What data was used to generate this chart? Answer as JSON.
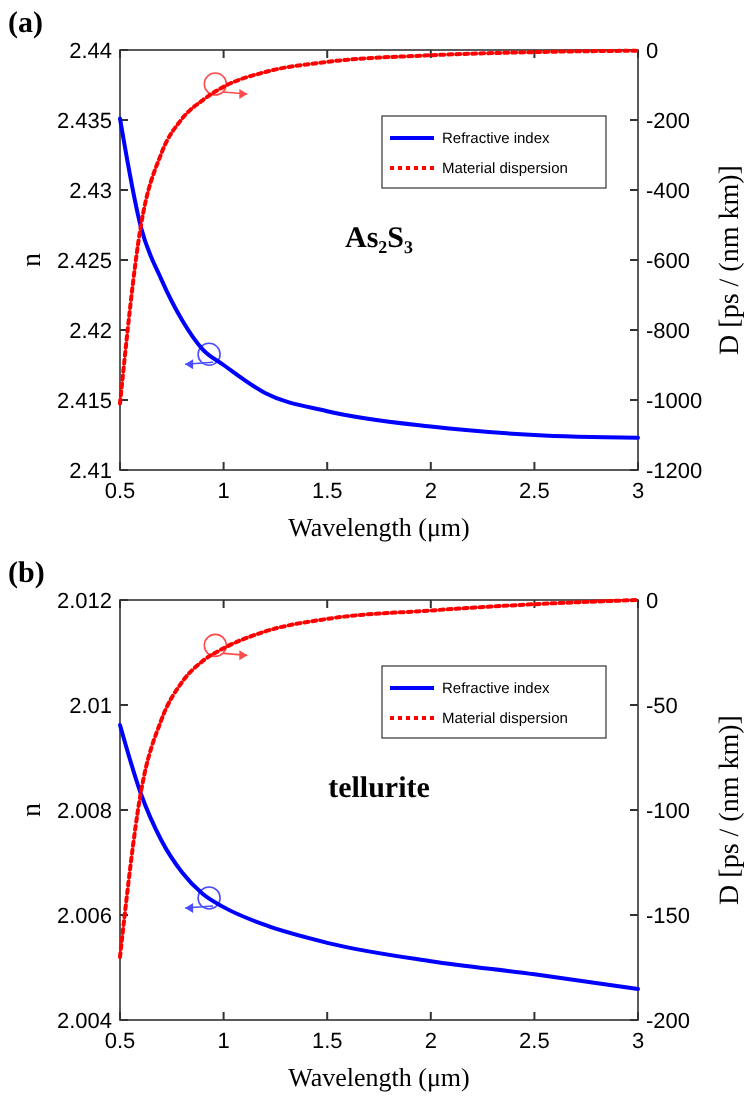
{
  "chart_data": [
    {
      "type": "line",
      "title": "(a)",
      "xlabel": "Wavelength (μm)",
      "ylabel": "n",
      "y2label": "D [ps / (nm km)]",
      "annotations": [
        "As₂S₃"
      ],
      "x": [
        0.5,
        0.6,
        0.7,
        0.8,
        0.9,
        1.0,
        1.2,
        1.5,
        2.0,
        2.5,
        3.0
      ],
      "series": [
        {
          "name": "Refractive index",
          "color": "#0000ff",
          "line_style": "solid",
          "values": [
            2.4351,
            2.4274,
            2.4236,
            2.4207,
            2.4186,
            2.4175,
            2.4155,
            2.4142,
            2.4131,
            2.4125,
            2.4123
          ]
        },
        {
          "name": "Material dispersion",
          "color": "#ff0000",
          "line_style": "dotted",
          "axis": "y2",
          "values": [
            -1010,
            -505,
            -295,
            -196,
            -143,
            -105,
            -63,
            -34,
            -15,
            -6,
            -2
          ]
        }
      ],
      "xlim": [
        0.5,
        3
      ],
      "xticks": [
        0.5,
        1,
        1.5,
        2,
        2.5,
        3
      ],
      "ylim": [
        2.41,
        2.44
      ],
      "yticks": [
        2.41,
        2.415,
        2.42,
        2.425,
        2.43,
        2.435,
        2.44
      ],
      "y2lim": [
        -1200,
        0
      ],
      "y2ticks": [
        -1200,
        -1000,
        -800,
        -600,
        -400,
        -200,
        0
      ],
      "grid": false,
      "legend": "top right"
    },
    {
      "type": "line",
      "title": "(b)",
      "xlabel": "Wavelength (μm)",
      "ylabel": "n",
      "y2label": "D [ps / (nm km)]",
      "annotations": [
        "tellurite"
      ],
      "x": [
        0.5,
        0.6,
        0.7,
        0.8,
        0.9,
        1.0,
        1.2,
        1.5,
        2.0,
        2.5,
        3.0
      ],
      "series": [
        {
          "name": "Refractive index",
          "color": "#0000ff",
          "line_style": "solid",
          "values": [
            2.00962,
            2.00832,
            2.00742,
            2.00681,
            2.0064,
            2.00615,
            2.00581,
            2.00547,
            2.00512,
            2.00487,
            2.00459
          ]
        },
        {
          "name": "Material dispersion",
          "color": "#ff0000",
          "line_style": "dotted",
          "axis": "y2",
          "values": [
            -170,
            -92,
            -57,
            -39,
            -29,
            -23,
            -15,
            -9,
            -5,
            -2,
            0
          ]
        }
      ],
      "xlim": [
        0.5,
        3
      ],
      "xticks": [
        0.5,
        1,
        1.5,
        2,
        2.5,
        3
      ],
      "ylim": [
        2.004,
        2.012
      ],
      "yticks": [
        2.004,
        2.006,
        2.008,
        2.01,
        2.012
      ],
      "y2lim": [
        -200,
        0
      ],
      "y2ticks": [
        -200,
        -150,
        -100,
        -50,
        0
      ],
      "grid": false,
      "legend": "top right"
    }
  ]
}
